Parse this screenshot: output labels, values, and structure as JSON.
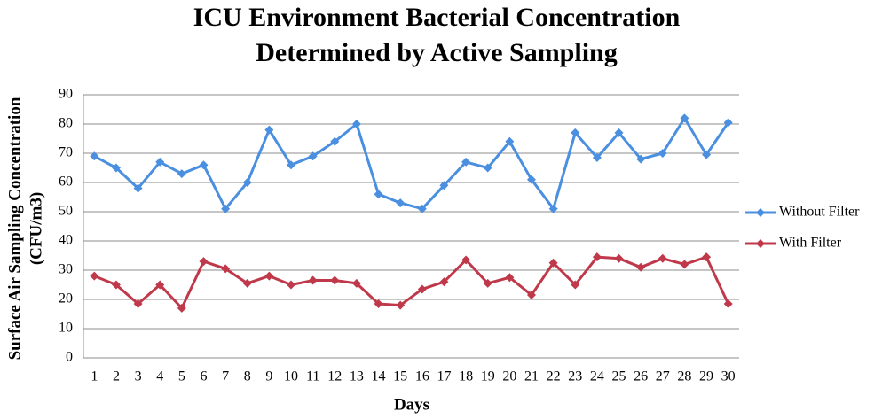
{
  "chart_data": {
    "type": "line",
    "title": [
      "ICU Environment Bacterial Concentration",
      "Determined by Active Sampling"
    ],
    "x_label": "Days",
    "y_label": [
      "Surface Air Sampling Concentration",
      "(CFU/m3)"
    ],
    "categories": [
      "1",
      "2",
      "3",
      "4",
      "5",
      "6",
      "7",
      "8",
      "9",
      "10",
      "11",
      "12",
      "13",
      "14",
      "15",
      "16",
      "17",
      "18",
      "19",
      "20",
      "21",
      "22",
      "23",
      "24",
      "25",
      "26",
      "27",
      "28",
      "29",
      "30"
    ],
    "series": [
      {
        "name": "Without Filter",
        "color": "#4a8fe0",
        "values": [
          69,
          65,
          58,
          67,
          63,
          66,
          51,
          60,
          78,
          66,
          69,
          74,
          80,
          56,
          53,
          51,
          59,
          67,
          65,
          74,
          61,
          51,
          77,
          68.5,
          77,
          68,
          70,
          82,
          69.5,
          80.5
        ]
      },
      {
        "name": "With Filter",
        "color": "#c0394b",
        "values": [
          28,
          25,
          18.5,
          25,
          17,
          33,
          30.5,
          25.5,
          28,
          25,
          26.5,
          26.5,
          25.5,
          18.5,
          18,
          23.5,
          26,
          33.5,
          25.5,
          27.5,
          21.5,
          32.5,
          25,
          34.5,
          34,
          31,
          34,
          32,
          34.5,
          18.5
        ]
      }
    ],
    "ylim": [
      0,
      90
    ],
    "yticks": [
      0,
      10,
      20,
      30,
      40,
      50,
      60,
      70,
      80,
      90
    ],
    "grid": true,
    "legend": "right"
  }
}
